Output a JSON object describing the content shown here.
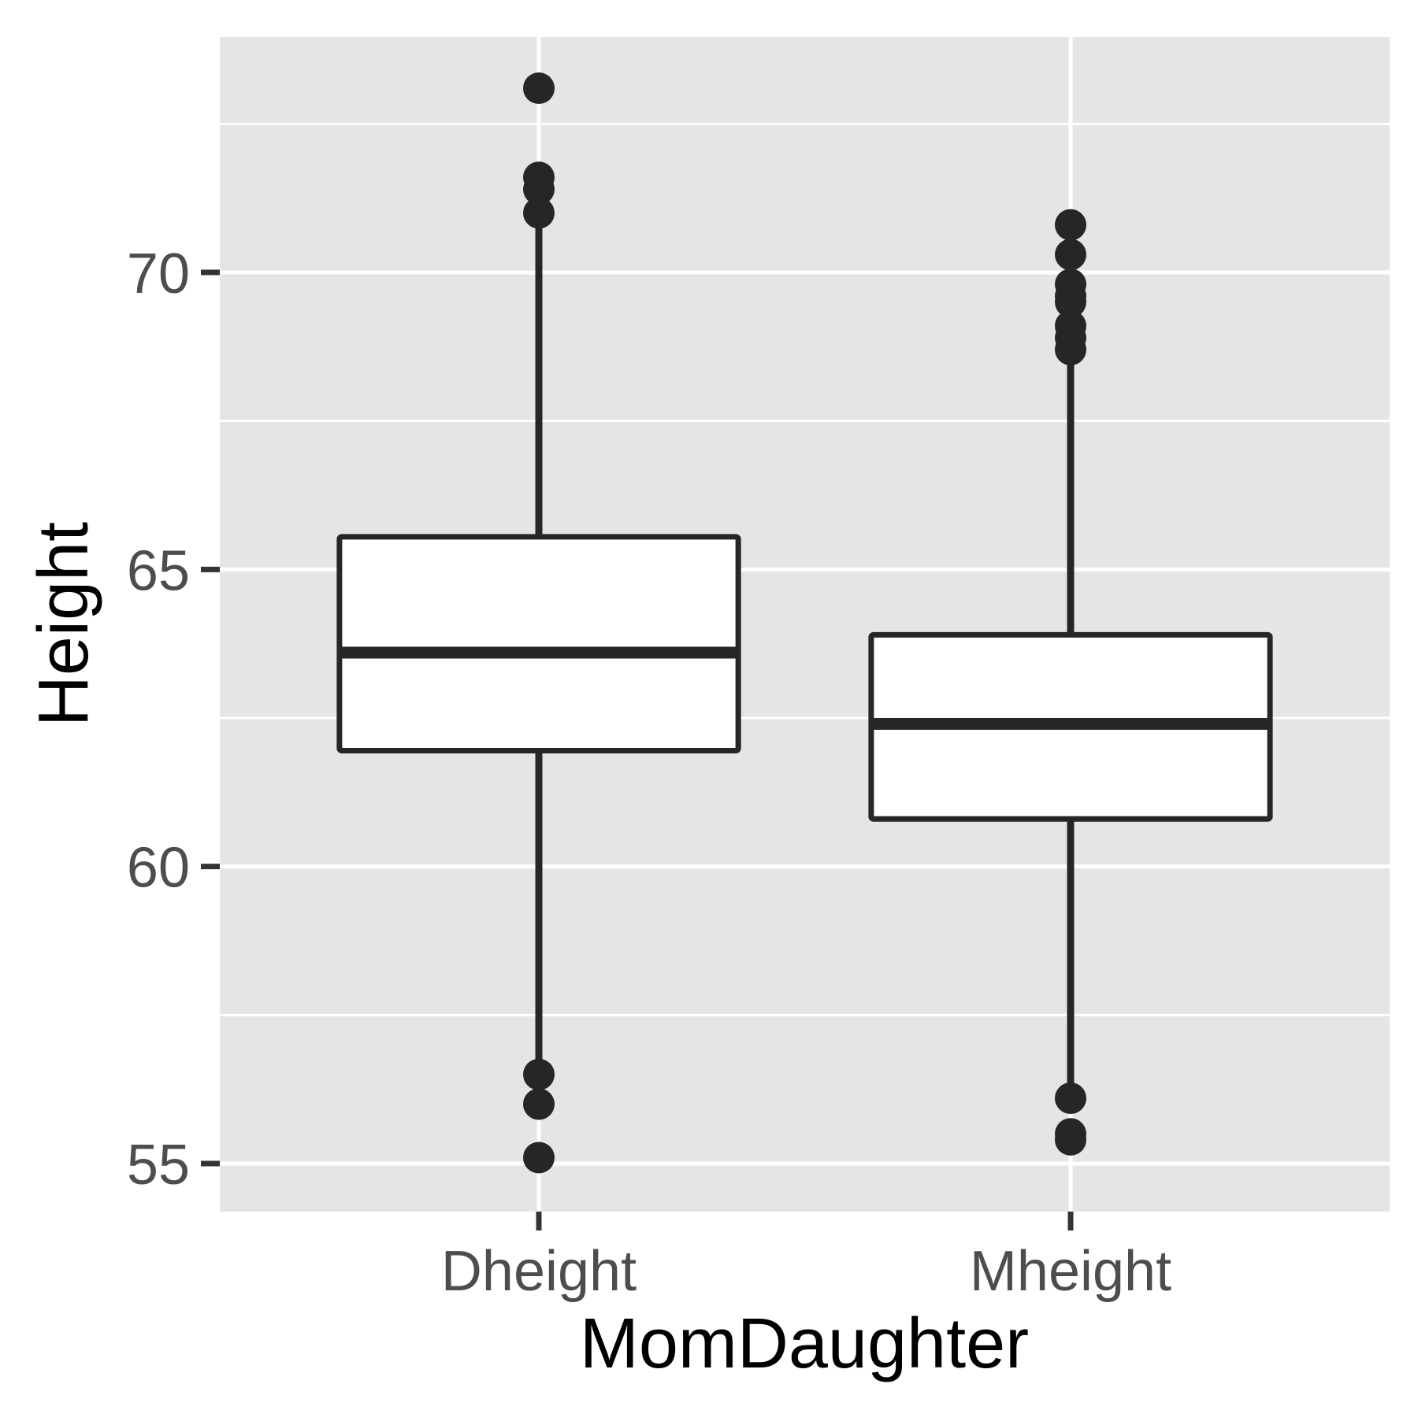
{
  "chart_data": {
    "type": "boxplot",
    "title": "",
    "xlabel": "MomDaughter",
    "ylabel": "Height",
    "ylim": [
      54.2,
      74.0
    ],
    "y_ticks": [
      55,
      60,
      65,
      70
    ],
    "y_tick_labels": [
      "55",
      "60",
      "65",
      "70"
    ],
    "categories": [
      "Dheight",
      "Mheight"
    ],
    "grid": true,
    "legend": "none",
    "boxes": [
      {
        "name": "Dheight",
        "whisker_low": 56.3,
        "q1": 61.95,
        "median": 63.6,
        "q3": 65.55,
        "whisker_high": 71.0,
        "outliers": [
          73.1,
          71.6,
          71.4,
          71.0,
          56.5,
          56.0,
          55.1
        ]
      },
      {
        "name": "Mheight",
        "whisker_low": 56.1,
        "q1": 60.8,
        "median": 62.4,
        "q3": 63.9,
        "whisker_high": 68.7,
        "outliers": [
          70.8,
          70.3,
          69.8,
          69.6,
          69.5,
          69.1,
          68.9,
          68.7,
          56.1,
          55.5,
          55.4
        ]
      }
    ],
    "colors": {
      "panel_background": "#e5e5e5",
      "grid": "#ffffff",
      "box_fill": "#ffffff",
      "box_stroke": "#262626",
      "point": "#262626",
      "tick_text": "#4d4d4d",
      "axis_title": "#000000"
    }
  }
}
